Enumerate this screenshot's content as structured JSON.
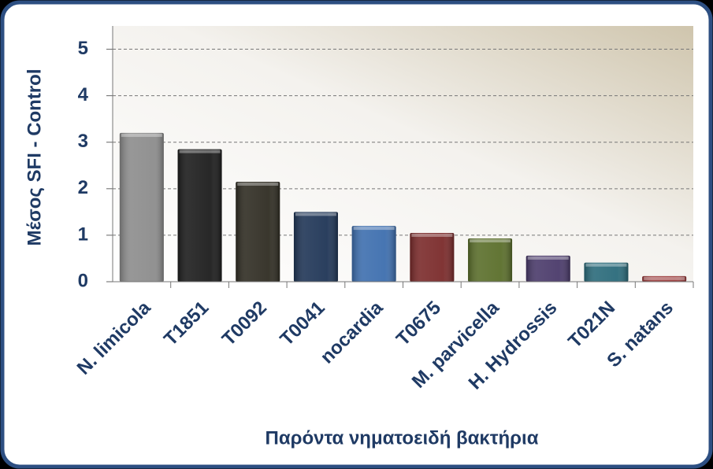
{
  "chart_data": {
    "type": "bar",
    "y_label": "Μέσος SFI - Control",
    "x_label": "Παρόντα νηματοειδή βακτήρια",
    "categories": [
      "N. limicola",
      "T1851",
      "T0092",
      "T0041",
      "nocardia",
      "T0675",
      "M. parvicella",
      "H. Hydrossis",
      "T021N",
      "S. natans"
    ],
    "values": [
      3.2,
      2.85,
      2.15,
      1.5,
      1.2,
      1.05,
      0.93,
      0.56,
      0.41,
      0.12
    ],
    "colors": [
      "#8c8c8c",
      "#1c1c1c",
      "#2f2c22",
      "#1f3556",
      "#3d6eae",
      "#7a2a2a",
      "#5a6e2a",
      "#4a3a6a",
      "#2a6a7a",
      "#9a3a3a"
    ],
    "ylim": [
      0,
      5.5
    ],
    "yticks": [
      0,
      1,
      2,
      3,
      4,
      5
    ],
    "grid": true
  }
}
